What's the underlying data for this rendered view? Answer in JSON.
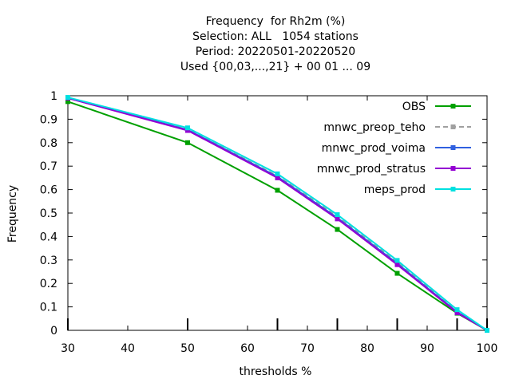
{
  "title_lines": [
    "Frequency  for Rh2m (%)",
    "Selection: ALL   1054 stations",
    "Period: 20220501-20220520",
    "Used {00,03,...,21} + 00 01 ... 09"
  ],
  "chart_data": {
    "type": "line",
    "xlabel": "thresholds %",
    "ylabel": "Frequency",
    "xlim": [
      30,
      100
    ],
    "ylim": [
      0,
      1
    ],
    "xticks": [
      30,
      40,
      50,
      60,
      70,
      80,
      90,
      100
    ],
    "yticks": [
      0,
      0.1,
      0.2,
      0.3,
      0.4,
      0.5,
      0.6,
      0.7,
      0.8,
      0.9,
      1
    ],
    "major_xticks": [
      30,
      50,
      65,
      75,
      85,
      95,
      100
    ],
    "legend_position": "top-right",
    "x": [
      30,
      50,
      65,
      75,
      85,
      95,
      100
    ],
    "series": [
      {
        "name": "OBS",
        "color": "#00a000",
        "dashed": false,
        "values": [
          0.975,
          0.8,
          0.597,
          0.43,
          0.243,
          0.073,
          0.0
        ]
      },
      {
        "name": "mnwc_preop_teho",
        "color": "#a0a0a0",
        "dashed": true,
        "values": [
          0.99,
          0.857,
          0.658,
          0.485,
          0.29,
          0.082,
          0.0
        ]
      },
      {
        "name": "mnwc_prod_voima",
        "color": "#3060e0",
        "dashed": false,
        "values": [
          0.99,
          0.855,
          0.655,
          0.48,
          0.285,
          0.078,
          0.0
        ]
      },
      {
        "name": "mnwc_prod_stratus",
        "color": "#9400d3",
        "dashed": false,
        "values": [
          0.99,
          0.852,
          0.65,
          0.475,
          0.28,
          0.075,
          0.0
        ]
      },
      {
        "name": "meps_prod",
        "color": "#00e0e0",
        "dashed": false,
        "values": [
          0.993,
          0.863,
          0.667,
          0.493,
          0.298,
          0.088,
          0.0
        ]
      }
    ]
  }
}
